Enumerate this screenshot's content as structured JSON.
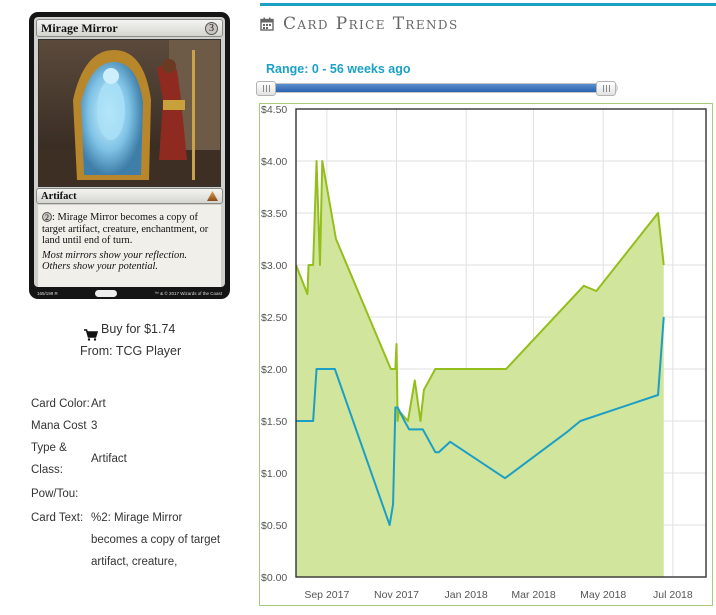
{
  "card": {
    "name": "Mirage Mirror",
    "mana_cost": "3",
    "type_line": "Artifact",
    "rules_cost": "2",
    "rules_text": ": Mirage Mirror becomes a copy of target artifact, creature, enchantment, or land until end of turn.",
    "flavor_text": "Most mirrors show your reflection. Others show your potential.",
    "collector_info": "165/199 R",
    "copyright": "™ & © 2017 Wizards of the Coast"
  },
  "buy": {
    "label": "Buy for $1.74",
    "from": "From: TCG Player"
  },
  "details": [
    {
      "label": "Card Color:",
      "value": "Art"
    },
    {
      "label": "Mana Cost",
      "value": "3"
    },
    {
      "label": "Type & Class:",
      "value": "Artifact"
    },
    {
      "label": "Pow/Tou:",
      "value": ""
    },
    {
      "label": "Card Text:",
      "value": "%2: Mirage Mirror becomes a copy of target artifact, creature,"
    }
  ],
  "price_panel": {
    "title": "Card Price Trends",
    "range_label": "Range: 0 - 56 weeks ago",
    "slider": {
      "min_weeks": 0,
      "max_weeks": 56
    }
  },
  "chart_data": {
    "type": "area",
    "title": "",
    "xlabel": "",
    "ylabel": "",
    "ylim": [
      0,
      4.5
    ],
    "grid": true,
    "y_ticks": [
      "$0.00",
      "$0.50",
      "$1.00",
      "$1.50",
      "$2.00",
      "$2.50",
      "$3.00",
      "$3.50",
      "$4.00",
      "$4.50"
    ],
    "x_ticks": [
      "Sep 2017",
      "Nov 2017",
      "Jan 2018",
      "Mar 2018",
      "May 2018",
      "Jul 2018"
    ],
    "x_tick_dates": [
      "2017-09-01",
      "2017-11-01",
      "2018-01-01",
      "2018-03-01",
      "2018-05-01",
      "2018-07-01"
    ],
    "xlim": [
      "2017-08-05",
      "2018-07-30"
    ],
    "series": [
      {
        "color": "#94be1c",
        "fill": "#d2e59c",
        "points": [
          [
            "2017-08-05",
            3.0
          ],
          [
            "2017-08-15",
            2.72
          ],
          [
            "2017-08-16",
            3.0
          ],
          [
            "2017-08-20",
            3.0
          ],
          [
            "2017-08-23",
            4.0
          ],
          [
            "2017-08-26",
            3.0
          ],
          [
            "2017-08-28",
            4.0
          ],
          [
            "2017-09-09",
            3.25
          ],
          [
            "2017-10-27",
            2.0
          ],
          [
            "2017-10-31",
            2.0
          ],
          [
            "2017-11-01",
            2.24
          ],
          [
            "2017-11-02",
            1.5
          ],
          [
            "2017-11-03",
            1.6
          ],
          [
            "2017-11-11",
            1.5
          ],
          [
            "2017-11-17",
            1.89
          ],
          [
            "2017-11-22",
            1.5
          ],
          [
            "2017-11-25",
            1.8
          ],
          [
            "2017-12-05",
            2.0
          ],
          [
            "2018-02-05",
            2.0
          ],
          [
            "2018-04-14",
            2.8
          ],
          [
            "2018-04-25",
            2.75
          ],
          [
            "2018-06-18",
            3.5
          ],
          [
            "2018-06-23",
            3.0
          ]
        ]
      },
      {
        "color": "#1b9fc6",
        "points": [
          [
            "2017-08-05",
            1.5
          ],
          [
            "2017-08-20",
            1.5
          ],
          [
            "2017-08-23",
            2.0
          ],
          [
            "2017-09-08",
            2.0
          ],
          [
            "2017-10-26",
            0.5
          ],
          [
            "2017-10-29",
            0.7
          ],
          [
            "2017-10-31",
            1.63
          ],
          [
            "2017-11-02",
            1.63
          ],
          [
            "2017-11-08",
            1.5
          ],
          [
            "2017-11-12",
            1.42
          ],
          [
            "2017-11-24",
            1.42
          ],
          [
            "2017-12-05",
            1.2
          ],
          [
            "2017-12-08",
            1.2
          ],
          [
            "2017-12-18",
            1.3
          ],
          [
            "2018-02-04",
            0.95
          ],
          [
            "2018-03-31",
            1.4
          ],
          [
            "2018-04-11",
            1.5
          ],
          [
            "2018-06-18",
            1.75
          ],
          [
            "2018-06-23",
            2.5
          ]
        ]
      }
    ]
  }
}
